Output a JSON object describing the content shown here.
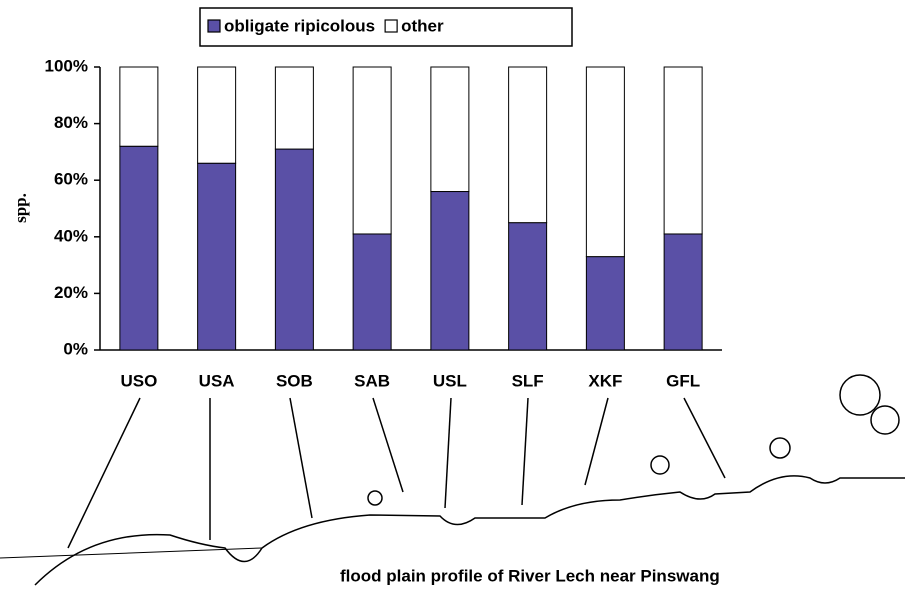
{
  "chart_data": {
    "type": "stacked_bar",
    "y_label": "spp.",
    "categories": [
      "USO",
      "USA",
      "SOB",
      "SAB",
      "USL",
      "SLF",
      "XKF",
      "GFL"
    ],
    "series": [
      {
        "name": "obligate ripicolous",
        "color": "#5a50a6",
        "values": [
          72,
          66,
          71,
          41,
          56,
          45,
          33,
          41
        ]
      },
      {
        "name": "other",
        "color": "#ffffff",
        "values": [
          28,
          34,
          29,
          59,
          44,
          55,
          67,
          59
        ]
      }
    ],
    "ylim": [
      0,
      100
    ],
    "yticks": [
      {
        "value": 0,
        "label": "0%"
      },
      {
        "value": 20,
        "label": "20%"
      },
      {
        "value": 40,
        "label": "40%"
      },
      {
        "value": 60,
        "label": "60%"
      },
      {
        "value": 80,
        "label": "80%"
      },
      {
        "value": 100,
        "label": "100%"
      }
    ],
    "annotation": "flood plain profile of River Lech near Pinswang"
  }
}
